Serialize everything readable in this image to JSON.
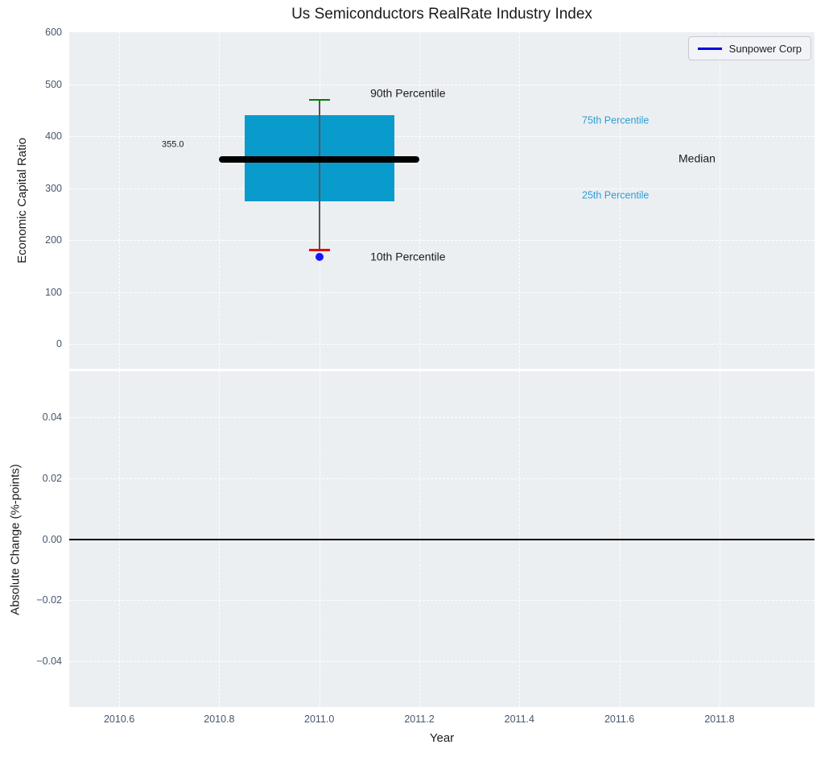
{
  "colors": {
    "plot_background": "#eceff2",
    "grid": "#ffffff",
    "tick_label": "#46566c",
    "text": "#1b1b1b"
  },
  "chart_data": [
    {
      "type": "box",
      "title": "Us Semiconductors RealRate Industry Index",
      "ylabel": "Economic Capital Ratio",
      "xlabel": "",
      "xlim": [
        2010.5,
        2011.99
      ],
      "ylim": [
        -48,
        600
      ],
      "grid": "white dashed on",
      "legend": {
        "label": "Sunpower Corp",
        "line_color": "#0000e0",
        "position": "upper right"
      },
      "yticks": [
        {
          "label": "600",
          "v": 600
        },
        {
          "label": "500",
          "v": 500
        },
        {
          "label": "400",
          "v": 400
        },
        {
          "label": "300",
          "v": 300
        },
        {
          "label": "200",
          "v": 200
        },
        {
          "label": "100",
          "v": 100
        },
        {
          "label": "0",
          "v": 0
        }
      ],
      "xgrid": [
        2010.6,
        2010.8,
        2011.0,
        2011.2,
        2011.4,
        2011.6,
        2011.8
      ],
      "box": {
        "x": 2011.0,
        "left": 2010.85,
        "right": 2011.15,
        "q1": 275,
        "median": 355,
        "q3": 440,
        "median_left": 2010.8,
        "median_right": 2011.2,
        "whisker_low": 180,
        "whisker_high": 470,
        "cap_half_width": 0.021,
        "median_value_label": "355.0"
      },
      "outlier": {
        "x": 2011.0,
        "y": 168
      },
      "colors": {
        "box_fill": "#0a9bcd",
        "median_line": "#000000",
        "whisker": "#555555",
        "cap_high": "#008000",
        "cap_low": "#ec0000",
        "outlier": "#1515ff"
      },
      "annotations": [
        {
          "text": "355.0",
          "x": 2010.685,
          "y": 383,
          "color": "#1b1b1b",
          "size": 11
        },
        {
          "text": "90th Percentile",
          "x": 2011.102,
          "y": 482,
          "color": "#1b1b1b",
          "size": 14
        },
        {
          "text": "75th Percentile",
          "x": 2011.525,
          "y": 429,
          "color": "#2e9ed3",
          "size": 12.5
        },
        {
          "text": "Median",
          "x": 2011.718,
          "y": 357,
          "color": "#1b1b1b",
          "size": 14
        },
        {
          "text": "25th Percentile",
          "x": 2011.525,
          "y": 285,
          "color": "#2e9ed3",
          "size": 12.5
        },
        {
          "text": "10th Percentile",
          "x": 2011.102,
          "y": 167,
          "color": "#1b1b1b",
          "size": 14
        }
      ]
    },
    {
      "type": "line",
      "title": "",
      "ylabel": "Absolute Change (%-points)",
      "xlabel": "Year",
      "xlim": [
        2010.5,
        2011.99
      ],
      "ylim": [
        -0.055,
        0.055
      ],
      "grid": "white dashed on",
      "yticks": [
        {
          "label": "0.04",
          "v": 0.04
        },
        {
          "label": "0.02",
          "v": 0.02
        },
        {
          "label": "0.00",
          "v": 0
        },
        {
          "label": "−0.02",
          "v": -0.02
        },
        {
          "label": "−0.04",
          "v": -0.04
        }
      ],
      "xticks": [
        {
          "label": "2010.6",
          "v": 2010.6
        },
        {
          "label": "2010.8",
          "v": 2010.8
        },
        {
          "label": "2011.0",
          "v": 2011.0
        },
        {
          "label": "2011.2",
          "v": 2011.2
        },
        {
          "label": "2011.4",
          "v": 2011.4
        },
        {
          "label": "2011.6",
          "v": 2011.6
        },
        {
          "label": "2011.8",
          "v": 2011.8
        }
      ],
      "zero_line": {
        "y": 0,
        "color": "#000000"
      }
    }
  ]
}
